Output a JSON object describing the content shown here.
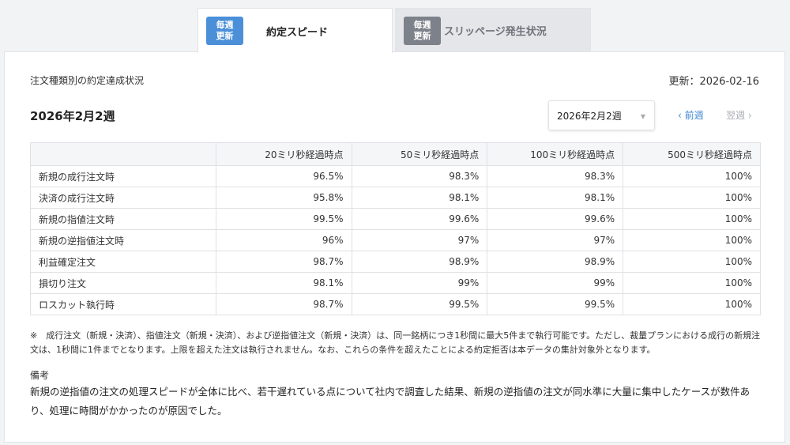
{
  "tabs": [
    {
      "badge_line1": "毎週",
      "badge_line2": "更新",
      "label": "約定スピード"
    },
    {
      "badge_line1": "毎週",
      "badge_line2": "更新",
      "label": "スリッページ発生状況"
    }
  ],
  "panel": {
    "subtitle": "注文種類別の約定達成状況",
    "updated": "更新：2026-02-16",
    "week_title": "2026年2月2週",
    "week_select": "2026年2月2週",
    "prev_week": "‹ 前週",
    "next_week": "翌週 ›"
  },
  "table": {
    "headers": [
      "",
      "20ミリ秒経過時点",
      "50ミリ秒経過時点",
      "100ミリ秒経過時点",
      "500ミリ秒経過時点"
    ],
    "rows": [
      [
        "新規の成行注文時",
        "96.5%",
        "98.3%",
        "98.3%",
        "100%"
      ],
      [
        "決済の成行注文時",
        "95.8%",
        "98.1%",
        "98.1%",
        "100%"
      ],
      [
        "新規の指値注文時",
        "99.5%",
        "99.6%",
        "99.6%",
        "100%"
      ],
      [
        "新規の逆指値注文時",
        "96%",
        "97%",
        "97%",
        "100%"
      ],
      [
        "利益確定注文",
        "98.7%",
        "98.9%",
        "98.9%",
        "100%"
      ],
      [
        "損切り注文",
        "98.1%",
        "99%",
        "99%",
        "100%"
      ],
      [
        "ロスカット執行時",
        "98.7%",
        "99.5%",
        "99.5%",
        "100%"
      ]
    ]
  },
  "note": "※　成行注文（新規・決済）、指値注文（新規・決済）、および逆指値注文（新規・決済）は、同一銘柄につき1秒間に最大5件まで執行可能です。ただし、裁量プランにおける成行の新規注文は、1秒間に1件までとなります。上限を超えた注文は執行されません。なお、これらの条件を超えたことによる約定拒否は本データの集計対象外となります。",
  "remarks": {
    "title": "備考",
    "body": "新規の逆指値の注文の処理スピードが全体に比べ、若干遅れている点について社内で調査した結果、新規の逆指値の注文が同水準に大量に集中したケースが数件あり、処理に時間がかかったのが原因でした。"
  }
}
